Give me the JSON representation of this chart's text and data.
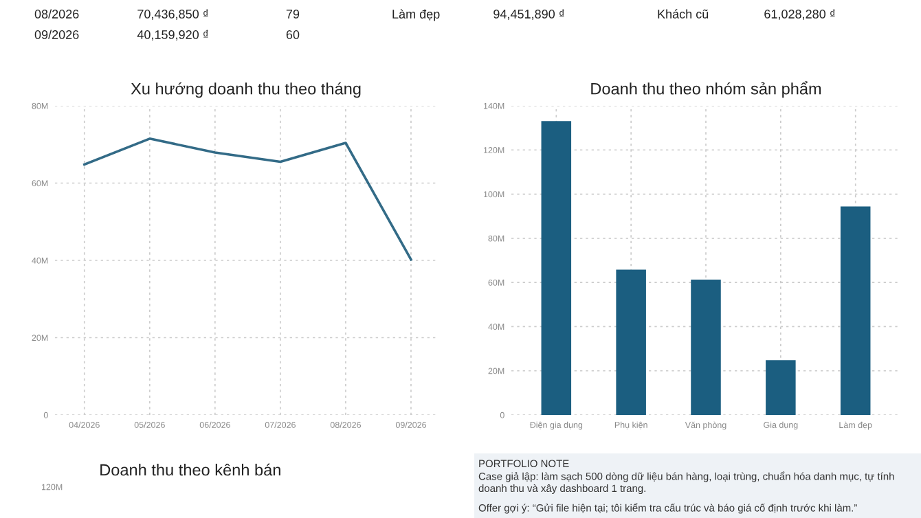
{
  "chart_data": [
    {
      "type": "other",
      "annotations": [
        "08/2026",
        "70,436,850 ₫",
        "79",
        "Làm đẹp",
        "94,451,890 ₫",
        "Khách cũ",
        "61,028,280 ₫",
        "09/2026",
        "40,159,920 ₫",
        "60"
      ]
    },
    {
      "type": "line",
      "title": "Xu hướng doanh thu theo tháng",
      "categories": [
        "04/2026",
        "05/2026",
        "06/2026",
        "07/2026",
        "08/2026",
        "09/2026"
      ],
      "series": [
        {
          "color": "#336b87",
          "values": [
            64800000,
            71500000,
            67900000,
            65500000,
            70400000,
            40200000
          ]
        }
      ],
      "ylim": [
        0,
        80000000
      ],
      "yticks": [
        {
          "value": 0,
          "label": "0"
        },
        {
          "value": 20000000,
          "label": "20M"
        },
        {
          "value": 40000000,
          "label": "40M"
        },
        {
          "value": 60000000,
          "label": "60M"
        },
        {
          "value": 80000000,
          "label": "80M"
        }
      ],
      "grid": true,
      "marker": "none",
      "line_style": "solid"
    },
    {
      "type": "bar",
      "title": "Doanh thu theo nhóm sản phẩm",
      "categories": [
        "Điện gia dụng",
        "Phụ kiện",
        "Văn phòng",
        "Gia dụng",
        "Làm đẹp"
      ],
      "series": [
        {
          "color": "#1b5e80",
          "values": [
            133100000,
            65800000,
            61300000,
            24800000,
            94400000
          ]
        }
      ],
      "ylim": [
        0,
        140000000
      ],
      "yticks": [
        {
          "value": 0,
          "label": "0"
        },
        {
          "value": 20000000,
          "label": "20M"
        },
        {
          "value": 40000000,
          "label": "40M"
        },
        {
          "value": 60000000,
          "label": "60M"
        },
        {
          "value": 80000000,
          "label": "80M"
        },
        {
          "value": 100000000,
          "label": "100M"
        },
        {
          "value": 120000000,
          "label": "120M"
        },
        {
          "value": 140000000,
          "label": "140M"
        }
      ],
      "grid": true
    },
    {
      "type": "other",
      "title": "Doanh thu theo kênh bán",
      "annotations": [
        "120M"
      ]
    },
    {
      "type": "other",
      "annotations": [
        "PORTFOLIO NOTE",
        "Case giả lập: làm sạch 500 dòng dữ liệu bán hàng, loại trùng, chuẩn hóa danh mục, tự tính",
        "doanh thu và xây dashboard 1 trang.",
        "Offer gợi ý: “Gửi file hiện tại; tôi kiểm tra cấu trúc và báo giá cố định trước khi làm.”"
      ]
    }
  ]
}
